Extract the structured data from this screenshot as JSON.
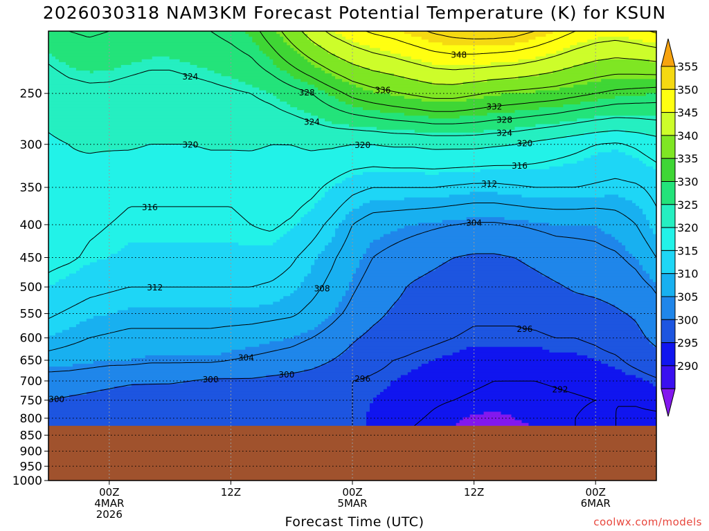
{
  "title": "2026030318 NAM3KM Forecast Potential Temperature (K) for KSUN",
  "credit": "coolwx.com/models",
  "chart_data": {
    "type": "heatmap",
    "title": "2026030318 NAM3KM Forecast Potential Temperature (K) for KSUN",
    "xlabel": "Forecast Time (UTC)",
    "ylabel": "",
    "x_unit": "forecast hours",
    "xlim": [
      0,
      60
    ],
    "y_ticks": [
      250,
      300,
      350,
      400,
      450,
      500,
      550,
      600,
      650,
      700,
      750,
      800,
      850,
      900,
      950,
      1000
    ],
    "ylim": [
      200,
      1000
    ],
    "x_ticks": [
      {
        "hour": 6,
        "lines": [
          "00Z",
          "4MAR",
          "2026"
        ]
      },
      {
        "hour": 18,
        "lines": [
          "12Z"
        ]
      },
      {
        "hour": 30,
        "lines": [
          "00Z",
          "5MAR"
        ]
      },
      {
        "hour": 42,
        "lines": [
          "12Z"
        ]
      },
      {
        "hour": 54,
        "lines": [
          "00Z",
          "6MAR"
        ]
      }
    ],
    "colorbar": {
      "ticks": [
        355,
        350,
        345,
        340,
        335,
        330,
        325,
        320,
        315,
        310,
        305,
        300,
        295,
        290
      ],
      "colors": [
        "#f7a30f",
        "#f5d912",
        "#ffff11",
        "#cdfd2a",
        "#7fe623",
        "#3fd635",
        "#23e37a",
        "#25efc1",
        "#22f2e8",
        "#1ed6f6",
        "#18b0f0",
        "#1f86ea",
        "#1d55e0",
        "#1015ef",
        "#3a10f0",
        "#8218ee"
      ]
    },
    "surface_pressure": 822,
    "ground_color": "#a0522d",
    "contour_interval": 4,
    "grid_x": [
      0,
      2,
      4,
      6,
      8,
      10,
      12,
      14,
      16,
      18,
      20,
      22,
      24,
      26,
      28,
      30,
      32,
      34,
      36,
      38,
      40,
      42,
      44,
      46,
      48,
      50,
      52,
      54,
      56,
      58,
      60
    ],
    "grid_p": [
      200,
      250,
      300,
      350,
      400,
      450,
      500,
      550,
      600,
      650,
      700,
      750,
      800,
      825
    ],
    "theta": [
      [
        326.5,
        328.0,
        328.5,
        328.0,
        327.5,
        327.0,
        327.0,
        327.5,
        328.0,
        329.0,
        330.5,
        334.0,
        338.0,
        342.0,
        345.0,
        347.0,
        348.5,
        349.5,
        351.0,
        352.5,
        353.5,
        354.0,
        354.0,
        353.5,
        352.0,
        350.0,
        348.0,
        346.5,
        346.0,
        347.0,
        348.5
      ],
      [
        321.5,
        322.5,
        323.0,
        323.0,
        322.5,
        322.0,
        322.0,
        322.5,
        323.0,
        323.5,
        324.0,
        325.0,
        326.5,
        328.0,
        330.5,
        333.0,
        334.5,
        335.5,
        336.5,
        337.5,
        337.5,
        336.5,
        335.5,
        335.0,
        334.5,
        334.0,
        333.0,
        332.0,
        331.0,
        330.5,
        330.0
      ],
      [
        319.5,
        320.0,
        320.5,
        320.5,
        320.5,
        320.0,
        320.0,
        320.0,
        320.5,
        320.5,
        320.5,
        320.0,
        320.0,
        320.5,
        320.5,
        320.0,
        320.0,
        320.5,
        320.5,
        321.0,
        321.0,
        321.0,
        320.5,
        320.0,
        319.0,
        318.0,
        317.0,
        316.0,
        315.5,
        316.5,
        318.0
      ],
      [
        319.0,
        319.0,
        318.0,
        317.0,
        316.5,
        316.5,
        316.5,
        316.5,
        316.5,
        316.5,
        317.0,
        317.5,
        318.0,
        317.0,
        315.0,
        313.0,
        312.0,
        312.0,
        312.0,
        312.0,
        311.5,
        311.0,
        311.0,
        311.5,
        312.0,
        312.0,
        312.0,
        311.5,
        311.0,
        311.5,
        313.0
      ],
      [
        318.0,
        317.5,
        316.5,
        316.0,
        315.5,
        315.5,
        315.5,
        315.5,
        315.5,
        315.5,
        316.0,
        316.5,
        315.5,
        313.5,
        311.0,
        308.0,
        306.0,
        305.5,
        305.0,
        304.5,
        304.0,
        303.5,
        303.5,
        304.0,
        304.5,
        305.0,
        305.0,
        305.0,
        306.0,
        308.0,
        311.0
      ],
      [
        317.0,
        316.5,
        315.5,
        315.0,
        314.5,
        314.5,
        314.5,
        314.5,
        314.5,
        314.5,
        314.5,
        314.0,
        312.5,
        310.5,
        308.5,
        306.0,
        304.0,
        303.0,
        302.0,
        301.0,
        300.0,
        299.5,
        299.5,
        300.0,
        301.0,
        302.0,
        302.5,
        303.0,
        303.5,
        305.0,
        308.0
      ],
      [
        315.0,
        314.0,
        313.0,
        312.5,
        312.0,
        312.0,
        312.0,
        312.0,
        312.0,
        312.0,
        312.0,
        311.5,
        310.5,
        309.0,
        307.0,
        304.5,
        302.5,
        301.0,
        299.5,
        298.5,
        297.5,
        297.0,
        297.0,
        297.5,
        298.5,
        299.5,
        300.5,
        301.0,
        301.5,
        302.5,
        304.5
      ],
      [
        312.5,
        311.5,
        310.5,
        310.0,
        309.5,
        309.5,
        309.5,
        309.5,
        309.5,
        309.5,
        309.5,
        309.0,
        308.5,
        307.0,
        305.0,
        303.0,
        301.0,
        299.5,
        298.5,
        297.5,
        297.0,
        296.5,
        296.5,
        296.5,
        297.0,
        297.5,
        298.0,
        298.5,
        299.5,
        300.5,
        302.5
      ],
      [
        310.0,
        309.0,
        308.0,
        307.5,
        307.0,
        307.0,
        307.0,
        307.0,
        307.0,
        306.5,
        306.0,
        305.5,
        305.0,
        304.0,
        302.5,
        300.5,
        299.0,
        298.0,
        297.0,
        296.5,
        296.0,
        295.5,
        295.5,
        295.5,
        295.5,
        296.0,
        296.0,
        296.5,
        297.5,
        299.0,
        301.0
      ],
      [
        306.5,
        306.0,
        305.5,
        305.0,
        305.0,
        304.5,
        304.5,
        304.5,
        304.5,
        304.0,
        303.5,
        303.0,
        302.5,
        301.5,
        300.0,
        298.5,
        297.0,
        296.0,
        295.5,
        295.0,
        294.5,
        294.0,
        294.0,
        294.0,
        294.0,
        294.5,
        294.5,
        295.0,
        295.5,
        297.0,
        298.5
      ],
      [
        302.0,
        302.0,
        301.5,
        301.0,
        300.5,
        300.5,
        300.5,
        300.0,
        299.5,
        299.5,
        299.5,
        299.0,
        298.5,
        298.0,
        297.0,
        296.0,
        295.5,
        295.0,
        294.5,
        293.5,
        293.0,
        292.5,
        292.0,
        292.0,
        292.0,
        292.5,
        293.0,
        293.5,
        294.0,
        294.5,
        295.5
      ],
      [
        300.0,
        299.5,
        299.0,
        298.5,
        298.0,
        297.5,
        297.0,
        297.0,
        296.5,
        296.5,
        296.5,
        296.0,
        296.0,
        296.5,
        296.5,
        296.0,
        295.0,
        294.5,
        293.5,
        292.5,
        292.0,
        291.5,
        291.0,
        290.5,
        290.5,
        291.0,
        291.5,
        292.0,
        292.0,
        292.5,
        293.5
      ],
      [
        298.5,
        298.0,
        297.5,
        297.0,
        296.5,
        296.5,
        296.5,
        296.0,
        296.0,
        296.0,
        296.0,
        296.0,
        296.5,
        297.0,
        297.0,
        296.0,
        294.5,
        293.5,
        292.5,
        291.5,
        290.5,
        289.5,
        289.5,
        290.0,
        290.5,
        291.0,
        292.0,
        293.0,
        292.0,
        291.0,
        291.0
      ],
      [
        298.0,
        297.5,
        297.0,
        297.0,
        296.5,
        296.5,
        296.5,
        296.0,
        296.0,
        296.0,
        296.0,
        296.0,
        296.5,
        297.0,
        297.0,
        296.0,
        294.5,
        293.0,
        292.0,
        291.0,
        290.0,
        289.0,
        289.0,
        289.5,
        290.0,
        291.0,
        292.0,
        293.0,
        292.0,
        291.0,
        290.5
      ]
    ]
  }
}
